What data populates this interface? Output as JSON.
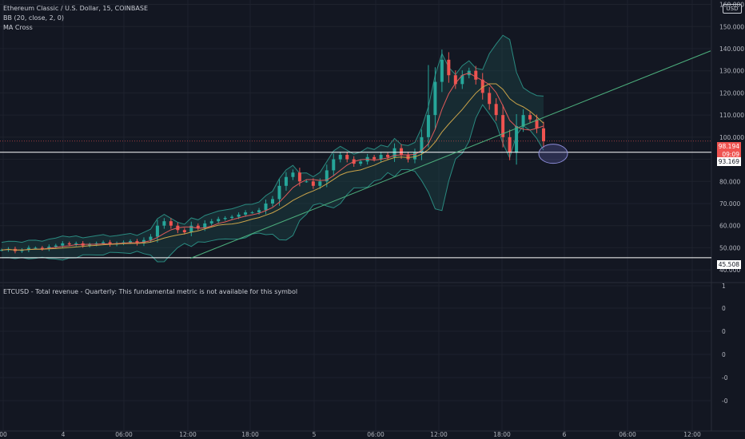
{
  "header": {
    "title": "Ethereum Classic / U.S. Dollar, 15, COINBASE",
    "indicator_bb": "BB (20, close, 2, 0)",
    "indicator_ma": "MA Cross",
    "currency": "USD"
  },
  "price_tags": {
    "last_price": "98.194",
    "countdown": "09:09",
    "level_high": "93.169",
    "level_low": "45.508"
  },
  "lower_pane": {
    "text": "ETCUSD - Total revenue - Quarterly: This fundamental metric is not available for this symbol",
    "ticks": [
      "1",
      "0",
      "0",
      "0",
      "-0",
      "-0"
    ]
  },
  "colors": {
    "background": "#131722",
    "up": "#26a69a",
    "down": "#ef5350",
    "bb_fill": "#1f5050",
    "trendline": "#4caf7d",
    "ellipse": "#5a5aa0"
  },
  "chart_data": {
    "type": "candlestick",
    "title": "Ethereum Classic / U.S. Dollar, 15, COINBASE",
    "y_ticks": [
      40,
      50,
      60,
      70,
      80,
      90,
      100,
      110,
      120,
      130,
      140,
      150,
      160
    ],
    "y_tick_labels": [
      "40.000",
      "50.000",
      "60.000",
      "70.000",
      "80.000",
      "",
      "100.000",
      "110.000",
      "120.000",
      "130.000",
      "140.000",
      "150.000",
      "160.000"
    ],
    "ylim": [
      35,
      162
    ],
    "x_ticks": [
      "00",
      "4",
      "06:00",
      "12:00",
      "18:00",
      "5",
      "06:00",
      "12:00",
      "18:00",
      "6",
      "06:00",
      "12:00"
    ],
    "horizontal_levels": [
      93.169,
      45.508
    ],
    "last_price": 98.194,
    "series": [
      {
        "name": "ETCUSD",
        "close_path": [
          49,
          49.5,
          48.5,
          49,
          50,
          50,
          49.5,
          50.5,
          51,
          52,
          51.5,
          52,
          51,
          51.5,
          52,
          52.5,
          51.5,
          52,
          52.5,
          53,
          52,
          53.5,
          55,
          60,
          62,
          60,
          58,
          57,
          60,
          59,
          61,
          62,
          63,
          63.5,
          64,
          65,
          66,
          66,
          67,
          70,
          72,
          78,
          82,
          84,
          80,
          80,
          78,
          80,
          85,
          90,
          92,
          90,
          88,
          89,
          91,
          90,
          92,
          91,
          95,
          92,
          90,
          93,
          100,
          110,
          125,
          135,
          128,
          124,
          128,
          130,
          126,
          120,
          115,
          110,
          100,
          93,
          105,
          110,
          108,
          104,
          98.194
        ]
      }
    ]
  }
}
